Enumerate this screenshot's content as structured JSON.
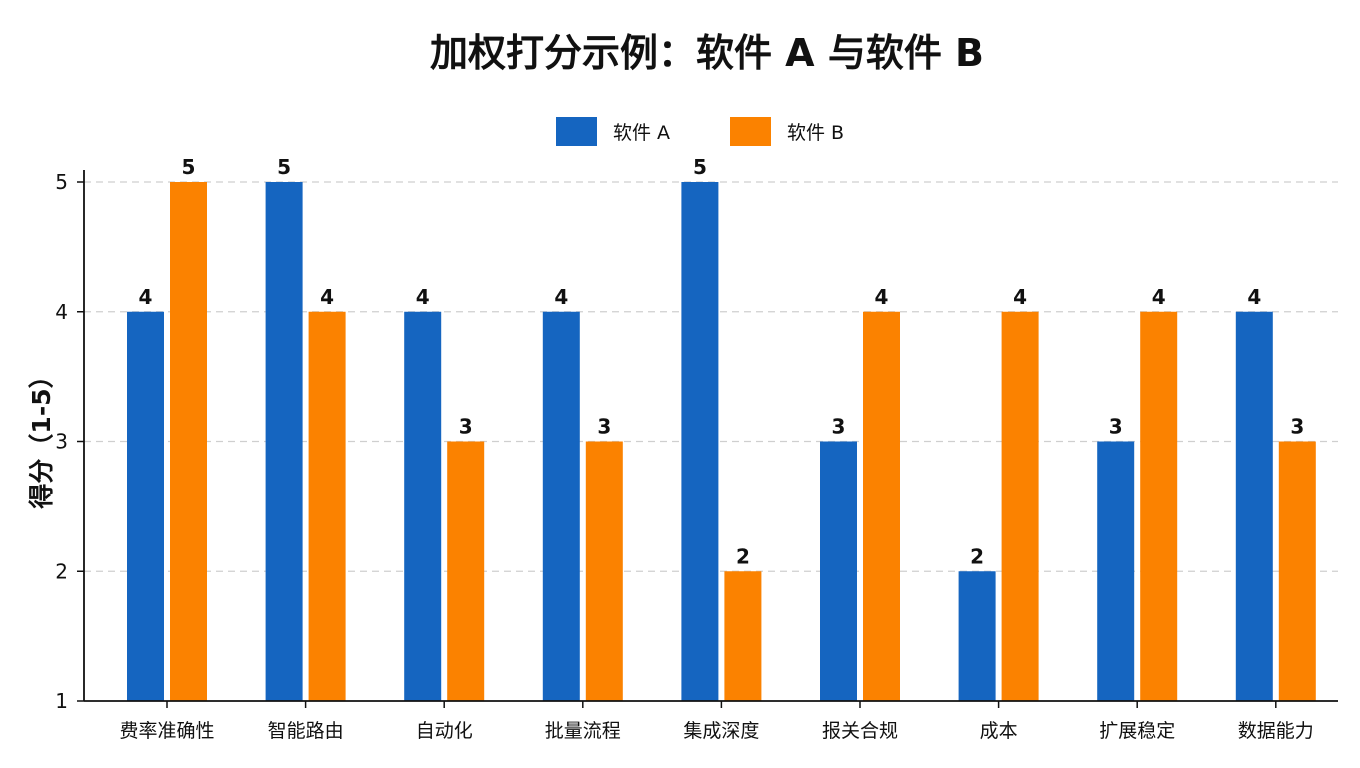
{
  "chart_data": {
    "type": "bar",
    "title": "加权打分示例：软件 A 与软件 B",
    "xlabel": "",
    "ylabel": "得分（1-5）",
    "categories": [
      "费率准确性",
      "智能路由",
      "自动化",
      "批量流程",
      "集成深度",
      "报关合规",
      "成本",
      "扩展稳定",
      "数据能力"
    ],
    "series": [
      {
        "name": "软件 A",
        "color": "#1565c0",
        "values": [
          4,
          5,
          4,
          4,
          5,
          3,
          2,
          3,
          4
        ]
      },
      {
        "name": "软件 B",
        "color": "#fb8200",
        "values": [
          5,
          4,
          3,
          3,
          2,
          4,
          4,
          4,
          3
        ]
      }
    ],
    "ylim": [
      1,
      5
    ],
    "yticks": [
      1,
      2,
      3,
      4,
      5
    ],
    "grid": "horizontal-dashed",
    "legend": "top-center",
    "data_labels": true
  }
}
